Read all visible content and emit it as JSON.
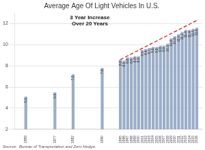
{
  "chart_data": {
    "type": "bar",
    "title": "Average Age Of Light Vehicles In U.S.",
    "annotation": "3 Year Increase\nOver 20 Years",
    "source": "Source:  Bureau of Transportation and Zero Hedge.",
    "x": [
      1969,
      1977,
      1982,
      1990,
      1995,
      1996,
      1997,
      1998,
      1999,
      2000,
      2001,
      2002,
      2003,
      2004,
      2005,
      2006,
      2007,
      2008,
      2009,
      2010,
      2011,
      2012,
      2013,
      2014,
      2015,
      2016
    ],
    "series": [
      {
        "type": "bar",
        "color": "#9baec8",
        "values": [
          5.1,
          5.5,
          7.2,
          7.8,
          8.6,
          8.5,
          8.8,
          8.8,
          8.9,
          8.9,
          9.5,
          9.6,
          9.7,
          9.8,
          9.8,
          9.9,
          9.9,
          10.1,
          10.6,
          10.8,
          11.0,
          11.2,
          11.4,
          11.4,
          11.5,
          11.6
        ],
        "value_labels": [
          "5.1",
          "5.5",
          "7.2",
          "7.8",
          "8.6",
          "8.5",
          "8.8",
          "8.8",
          "8.9",
          "8.9",
          "9.5",
          "9.6",
          "9.7",
          "9.8",
          "9.8",
          "9.9",
          "9.9",
          "10.1",
          "10.6",
          "10.8",
          "11.0",
          "11.2",
          "11.4",
          "11.4",
          "11.5",
          "11.6"
        ]
      },
      {
        "type": "line",
        "color": "#cc1111",
        "line_style": "dashed",
        "x": [
          1995,
          2016
        ],
        "values": [
          8.6,
          12.3
        ]
      }
    ],
    "xlim": [
      1966,
      2017.5
    ],
    "xticks": [
      1969,
      1977,
      1982,
      1990,
      1995,
      1996,
      1997,
      1998,
      1999,
      2000,
      2001,
      2002,
      2003,
      2004,
      2005,
      2006,
      2007,
      2008,
      2009,
      2010,
      2011,
      2012,
      2013,
      2014,
      2015,
      2016
    ],
    "ylim": [
      2.0,
      13.0
    ],
    "yticks": [
      2.0,
      4.0,
      6.0,
      8.0,
      10.0,
      12.0
    ],
    "grid": true,
    "data_labels": true
  }
}
